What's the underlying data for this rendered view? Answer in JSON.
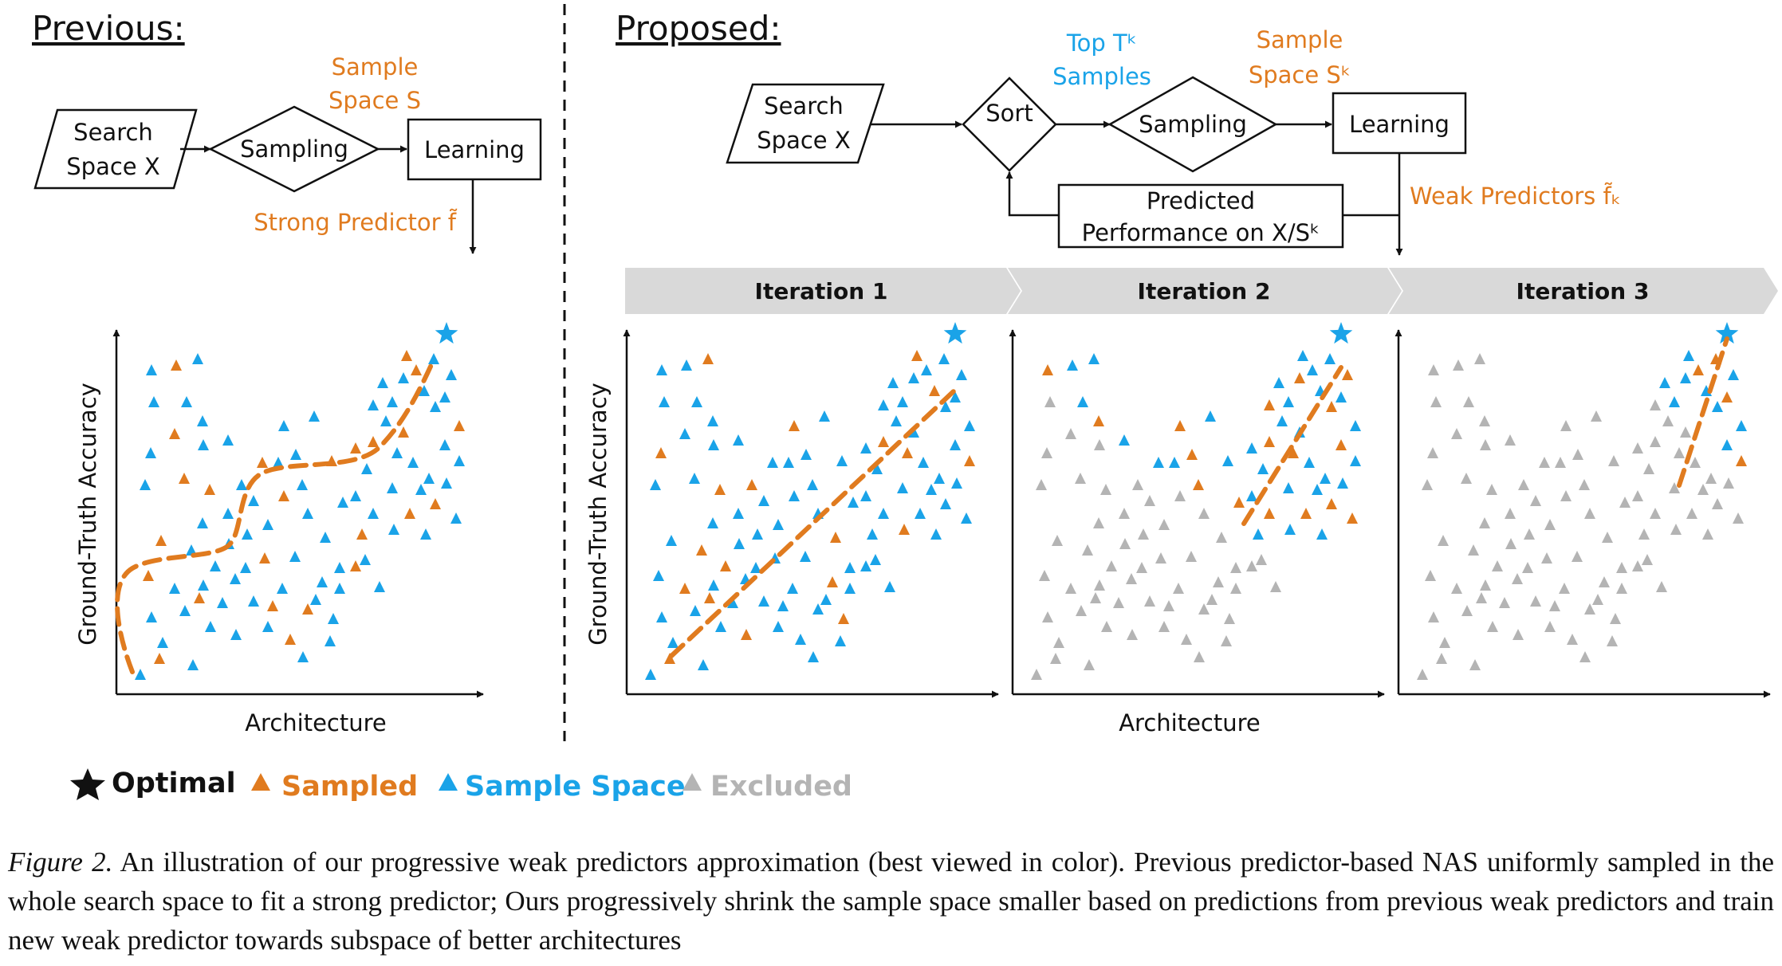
{
  "left": {
    "heading": "Previous:",
    "search_space": [
      "Search",
      "Space X"
    ],
    "sampling": "Sampling",
    "learning": "Learning",
    "sample_space": [
      "Sample",
      "Space S"
    ],
    "predictor": "Strong Predictor f̃",
    "xlabel": "Architecture",
    "ylabel": "Ground-Truth Accuracy"
  },
  "right": {
    "heading": "Proposed:",
    "search_space": [
      "Search",
      "Space X"
    ],
    "sort": "Sort",
    "top": [
      "Top Tᵏ",
      "Samples"
    ],
    "sampling": "Sampling",
    "sample_space": [
      "Sample",
      "Space Sᵏ"
    ],
    "learning": "Learning",
    "predicted": [
      "Predicted",
      "Performance on X/Sᵏ"
    ],
    "predictors": "Weak Predictors f̃ₖ",
    "iterations": [
      "Iteration 1",
      "Iteration 2",
      "Iteration 3"
    ],
    "xlabel": "Architecture",
    "ylabel": "Ground-Truth Accuracy"
  },
  "legend": {
    "items": [
      {
        "label": "Optimal",
        "color": "#111111",
        "icon": "star-icon"
      },
      {
        "label": "Sampled",
        "color": "#e07b1f",
        "icon": "triangle-icon"
      },
      {
        "label": "Sample Space",
        "color": "#1aa3e8",
        "icon": "triangle-icon"
      },
      {
        "label": "Excluded",
        "color": "#b4b4b4",
        "icon": "triangle-icon"
      }
    ]
  },
  "colors": {
    "sampled": "#e07b1f",
    "space": "#1aa3e8",
    "excluded": "#b4b4b4",
    "arrow": "#d9d9d9"
  },
  "caption": {
    "label": "Figure 2.",
    "text": "An illustration of our progressive weak predictors approximation (best viewed in color). Previous predictor-based NAS uniformly sampled in the whole search space to fit a strong predictor; Ours progressively shrink the sample space smaller based on predictions from previous weak predictors and train new weak predictor towards subspace of better architectures"
  }
}
